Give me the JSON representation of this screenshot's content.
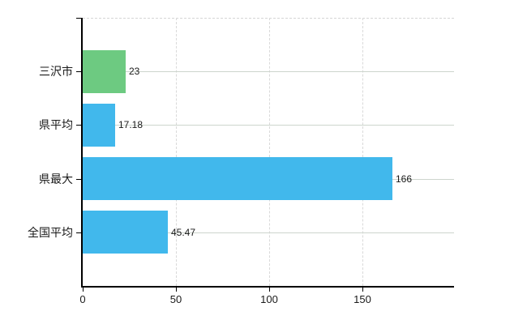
{
  "chart_data": {
    "type": "bar",
    "orientation": "horizontal",
    "title": "",
    "xlabel": "",
    "ylabel": "",
    "categories": [
      "三沢市",
      "県平均",
      "県最大",
      "全国平均"
    ],
    "values": [
      23,
      17.18,
      166,
      45.47
    ],
    "value_labels": [
      "23",
      "17.18",
      "166",
      "45.47"
    ],
    "bar_colors": [
      "#6dca81",
      "#41b8ec",
      "#41b8ec",
      "#41b8ec"
    ],
    "x_axis": {
      "min": 0,
      "max": 199,
      "ticks": [
        0,
        50,
        100,
        150
      ],
      "tick_labels": [
        "0",
        "50",
        "100",
        "150"
      ]
    },
    "grid": {
      "vertical": "dashed",
      "horizontal": "solid-through-bar-centers",
      "top_border": "dashed"
    },
    "legend": "none"
  },
  "colors": {
    "bar_green": "#6dca81",
    "bar_blue": "#41b8ec",
    "axis": "#000000",
    "grid_vertical": "#d9d9d9",
    "grid_horizontal": "#cdd5cd",
    "plot_top_border": "#d6d6d6",
    "text": "#1a1a1a",
    "background": "#ffffff"
  }
}
